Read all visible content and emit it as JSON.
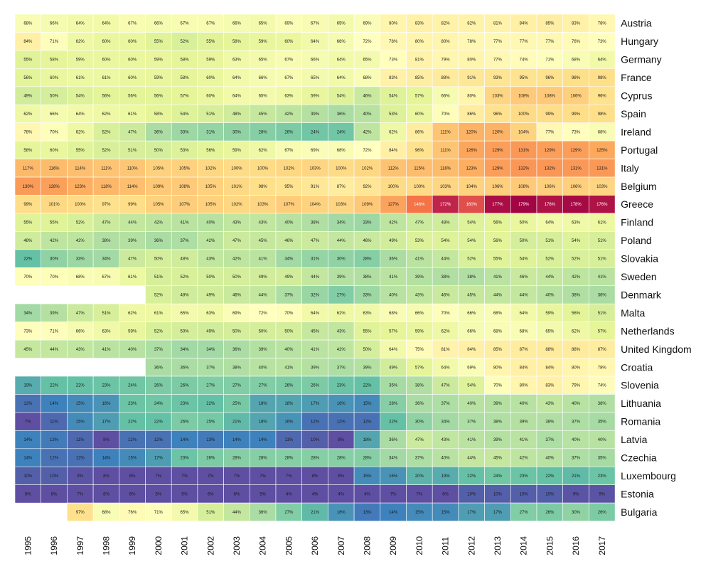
{
  "chart_data": {
    "type": "heatmap",
    "title": "",
    "xlabel": "",
    "ylabel": "",
    "value_unit": "%",
    "x": [
      "1995",
      "1996",
      "1997",
      "1998",
      "1999",
      "2000",
      "2001",
      "2002",
      "2003",
      "2004",
      "2005",
      "2006",
      "2007",
      "2008",
      "2009",
      "2010",
      "2011",
      "2012",
      "2013",
      "2014",
      "2015",
      "2016",
      "2017"
    ],
    "y": [
      "Austria",
      "Hungary",
      "Germany",
      "France",
      "Cyprus",
      "Spain",
      "Ireland",
      "Portugal",
      "Italy",
      "Belgium",
      "Greece",
      "Finland",
      "Poland",
      "Slovakia",
      "Sweden",
      "Denmark",
      "Malta",
      "Netherlands",
      "United Kingdom",
      "Croatia",
      "Slovenia",
      "Lithuania",
      "Romania",
      "Latvia",
      "Czechia",
      "Luxembourg",
      "Estonia",
      "Bulgaria"
    ],
    "values": [
      [
        68,
        66,
        64,
        64,
        67,
        66,
        67,
        67,
        66,
        65,
        69,
        67,
        65,
        69,
        80,
        83,
        82,
        82,
        81,
        84,
        85,
        83,
        78
      ],
      [
        84,
        71,
        62,
        60,
        60,
        55,
        52,
        55,
        58,
        59,
        60,
        64,
        66,
        72,
        78,
        80,
        80,
        78,
        77,
        77,
        77,
        76,
        73
      ],
      [
        55,
        58,
        59,
        60,
        60,
        59,
        58,
        59,
        63,
        65,
        67,
        66,
        64,
        65,
        73,
        81,
        79,
        80,
        77,
        74,
        71,
        68,
        64
      ],
      [
        56,
        60,
        61,
        61,
        60,
        59,
        58,
        60,
        64,
        66,
        67,
        65,
        64,
        68,
        83,
        85,
        88,
        91,
        93,
        95,
        96,
        98,
        98
      ],
      [
        49,
        50,
        54,
        56,
        56,
        56,
        57,
        60,
        64,
        65,
        63,
        59,
        54,
        46,
        54,
        57,
        66,
        80,
        103,
        108,
        108,
        106,
        96
      ],
      [
        62,
        66,
        64,
        62,
        61,
        58,
        54,
        51,
        48,
        45,
        42,
        39,
        36,
        40,
        53,
        60,
        70,
        86,
        96,
        100,
        99,
        99,
        98
      ],
      [
        78,
        70,
        62,
        52,
        47,
        36,
        33,
        31,
        30,
        28,
        26,
        24,
        24,
        42,
        62,
        86,
        111,
        120,
        120,
        104,
        77,
        73,
        68
      ],
      [
        58,
        60,
        55,
        52,
        51,
        50,
        53,
        56,
        59,
        62,
        67,
        69,
        68,
        72,
        84,
        96,
        111,
        126,
        129,
        131,
        129,
        129,
        125
      ],
      [
        117,
        116,
        114,
        111,
        110,
        105,
        105,
        102,
        100,
        100,
        102,
        103,
        100,
        102,
        112,
        115,
        116,
        123,
        129,
        132,
        132,
        131,
        131
      ],
      [
        130,
        128,
        123,
        118,
        114,
        109,
        108,
        105,
        101,
        98,
        95,
        91,
        87,
        92,
        100,
        100,
        103,
        104,
        106,
        108,
        106,
        106,
        103
      ],
      [
        99,
        101,
        100,
        97,
        99,
        105,
        107,
        105,
        102,
        103,
        107,
        104,
        103,
        109,
        127,
        146,
        172,
        160,
        177,
        179,
        176,
        178,
        176
      ],
      [
        55,
        55,
        52,
        47,
        44,
        42,
        41,
        40,
        43,
        43,
        40,
        38,
        34,
        33,
        42,
        47,
        48,
        54,
        56,
        60,
        64,
        63,
        61
      ],
      [
        48,
        42,
        42,
        38,
        39,
        36,
        37,
        42,
        47,
        45,
        46,
        47,
        44,
        46,
        49,
        53,
        54,
        54,
        56,
        50,
        51,
        54,
        51
      ],
      [
        22,
        30,
        33,
        34,
        47,
        50,
        48,
        43,
        42,
        41,
        34,
        31,
        30,
        28,
        36,
        41,
        44,
        52,
        55,
        54,
        52,
        52,
        51
      ],
      [
        70,
        70,
        68,
        67,
        61,
        51,
        52,
        50,
        50,
        49,
        49,
        44,
        39,
        38,
        41,
        39,
        38,
        38,
        41,
        46,
        44,
        42,
        41
      ],
      [
        null,
        null,
        null,
        null,
        null,
        52,
        48,
        49,
        46,
        44,
        37,
        32,
        27,
        33,
        40,
        43,
        46,
        45,
        44,
        44,
        40,
        38,
        36
      ],
      [
        34,
        39,
        47,
        51,
        62,
        61,
        65,
        63,
        69,
        72,
        70,
        64,
        62,
        63,
        68,
        66,
        70,
        66,
        68,
        64,
        59,
        56,
        51
      ],
      [
        73,
        71,
        66,
        63,
        59,
        52,
        50,
        49,
        50,
        50,
        50,
        45,
        43,
        55,
        57,
        59,
        62,
        66,
        68,
        68,
        65,
        62,
        57
      ],
      [
        45,
        44,
        43,
        41,
        40,
        37,
        34,
        34,
        36,
        39,
        40,
        41,
        42,
        50,
        64,
        75,
        81,
        84,
        85,
        87,
        88,
        88,
        87
      ],
      [
        null,
        null,
        null,
        null,
        null,
        36,
        36,
        37,
        38,
        40,
        41,
        39,
        37,
        39,
        49,
        57,
        64,
        69,
        80,
        84,
        84,
        80,
        78
      ],
      [
        19,
        22,
        22,
        23,
        24,
        26,
        26,
        27,
        27,
        27,
        26,
        26,
        23,
        22,
        35,
        38,
        47,
        54,
        70,
        80,
        83,
        79,
        74
      ],
      [
        12,
        14,
        15,
        16,
        23,
        24,
        23,
        22,
        25,
        18,
        18,
        17,
        16,
        15,
        28,
        36,
        37,
        40,
        39,
        40,
        43,
        40,
        38
      ],
      [
        7,
        11,
        15,
        17,
        22,
        22,
        26,
        25,
        21,
        18,
        16,
        12,
        12,
        12,
        22,
        30,
        34,
        37,
        38,
        39,
        38,
        37,
        35
      ],
      [
        14,
        13,
        11,
        8,
        12,
        12,
        14,
        13,
        14,
        14,
        11,
        10,
        8,
        18,
        36,
        47,
        43,
        41,
        39,
        41,
        37,
        40,
        40
      ],
      [
        14,
        12,
        12,
        14,
        15,
        17,
        23,
        26,
        28,
        28,
        28,
        28,
        28,
        28,
        34,
        37,
        40,
        44,
        45,
        42,
        40,
        37,
        35
      ],
      [
        10,
        10,
        9,
        8,
        8,
        7,
        7,
        7,
        7,
        7,
        7,
        8,
        8,
        15,
        16,
        20,
        19,
        22,
        24,
        23,
        22,
        21,
        23
      ],
      [
        8,
        8,
        7,
        8,
        6,
        5,
        5,
        6,
        6,
        5,
        4,
        4,
        4,
        4,
        7,
        7,
        6,
        10,
        10,
        10,
        10,
        9,
        9
      ],
      [
        null,
        null,
        97,
        68,
        76,
        71,
        65,
        51,
        44,
        36,
        27,
        21,
        16,
        13,
        14,
        15,
        15,
        17,
        17,
        27,
        26,
        30,
        26
      ]
    ]
  }
}
